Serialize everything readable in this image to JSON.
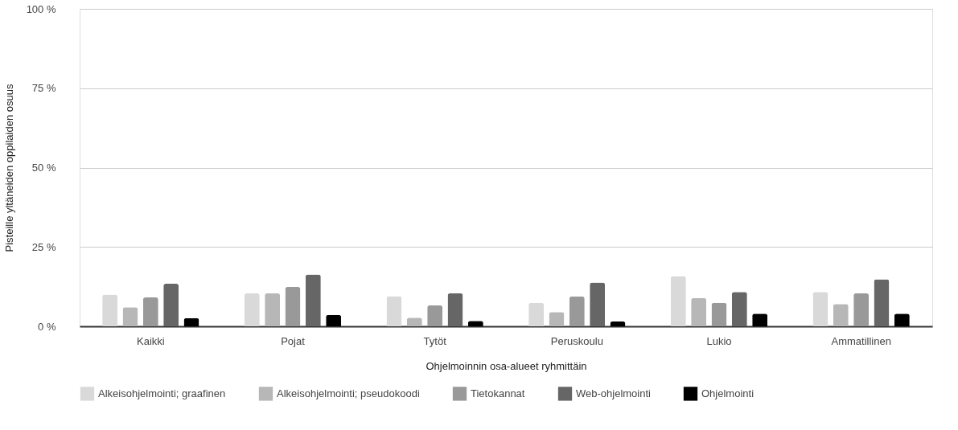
{
  "chart_data": {
    "type": "bar",
    "xlabel": "Ohjelmoinnin osa-alueet ryhmittäin",
    "ylabel": "Pisteille yltäneiden oppilaiden osuus",
    "categories": [
      "Kaikki",
      "Pojat",
      "Tytöt",
      "Peruskoulu",
      "Lukio",
      "Ammatillinen"
    ],
    "series": [
      {
        "name": "Alkeisohjelmointi; graafinen",
        "color": "#d9d9d9",
        "values": [
          10.0,
          10.4,
          9.5,
          7.4,
          15.8,
          10.8
        ]
      },
      {
        "name": "Alkeisohjelmointi; pseudokoodi",
        "color": "#b7b7b7",
        "values": [
          6.0,
          10.4,
          2.7,
          4.5,
          8.9,
          7.0
        ]
      },
      {
        "name": "Tietokannat",
        "color": "#999999",
        "values": [
          9.1,
          12.4,
          6.6,
          9.4,
          7.4,
          10.4
        ]
      },
      {
        "name": "Web-ohjelmointi",
        "color": "#666666",
        "values": [
          13.4,
          16.3,
          10.4,
          13.8,
          10.8,
          14.8
        ]
      },
      {
        "name": "Ohjelmointi",
        "color": "#000000",
        "values": [
          2.6,
          3.6,
          1.7,
          1.5,
          4.0,
          4.0
        ]
      }
    ],
    "ylim": [
      0,
      100
    ],
    "yticks": [
      {
        "value": 0,
        "label": "0 %"
      },
      {
        "value": 25,
        "label": "25 %"
      },
      {
        "value": 50,
        "label": "50 %"
      },
      {
        "value": 75,
        "label": "75 %"
      },
      {
        "value": 100,
        "label": "100 %"
      }
    ],
    "grid": "y",
    "legend": "bottom"
  }
}
